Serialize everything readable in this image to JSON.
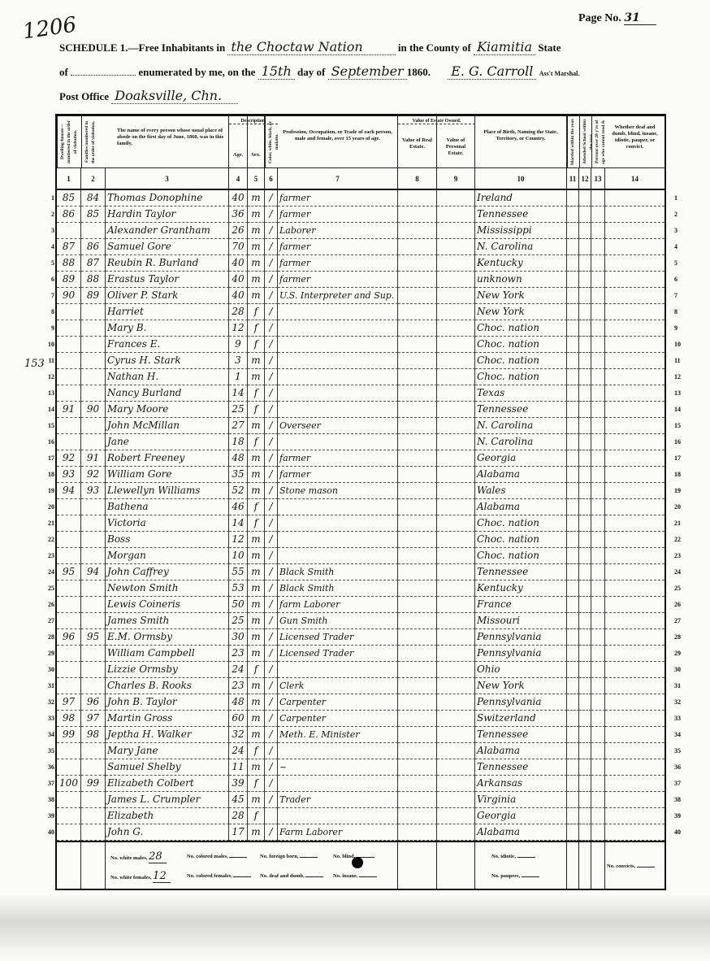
{
  "stamp": "1206",
  "page": {
    "label": "Page No.",
    "value": "31"
  },
  "header": {
    "schedule": "SCHEDULE 1.—Free Inhabitants in",
    "place": "the Choctaw Nation",
    "county_label": "in the County of",
    "county": "Kiamitia",
    "state_label": "State",
    "of_label": "of",
    "enumerated_label": "enumerated by me, on the",
    "day": "15th",
    "day_of_label": "day of",
    "month": "September",
    "year": "1860.",
    "marshal": "E. G. Carroll",
    "marshal_label": "Ass't Marshal.",
    "post_office_label": "Post Office",
    "post_office": "Doaksville, Chn."
  },
  "margin_note": "153",
  "columns": {
    "c1": "Dwelling-houses—numbered in the order of visitation.",
    "c2": "Families numbered in the order of visitation.",
    "c3": "The name of every person whose usual place of abode on the first day of June, 1860, was in this family.",
    "description": "Description.",
    "c4": "Age.",
    "c5": "Sex.",
    "c6": "Color, white, black, or mulatto.",
    "c7": "Profession, Occupation, or Trade of each person, male and female, over 15 years of age.",
    "estate": "Value of Estate Owned.",
    "c8": "Value of Real Estate.",
    "c9": "Value of Personal Estate.",
    "c10": "Place of Birth, Naming the State, Territory, or Country.",
    "c11": "Married within the year.",
    "c12": "Attended School within the year.",
    "c13": "Persons over 20 y'rs of age who cannot read & write.",
    "c14": "Whether deaf and dumb, blind, insane, idiotic, pauper, or convict.",
    "numbers": [
      "1",
      "2",
      "3",
      "4",
      "5",
      "6",
      "7",
      "8",
      "9",
      "10",
      "11",
      "12",
      "13",
      "14"
    ]
  },
  "rows": [
    {
      "n": "1",
      "dw": "85",
      "fam": "84",
      "name": "Thomas Donophine",
      "age": "40",
      "sex": "m",
      "color": "/",
      "occ": "farmer",
      "birth": "Ireland"
    },
    {
      "n": "2",
      "dw": "86",
      "fam": "85",
      "name": "Hardin Taylor",
      "age": "36",
      "sex": "m",
      "color": "/",
      "occ": "farmer",
      "birth": "Tennessee"
    },
    {
      "n": "3",
      "dw": "",
      "fam": "",
      "name": "Alexander Grantham",
      "age": "26",
      "sex": "m",
      "color": "/",
      "occ": "Laborer",
      "birth": "Mississippi"
    },
    {
      "n": "4",
      "dw": "87",
      "fam": "86",
      "name": "Samuel Gore",
      "age": "70",
      "sex": "m",
      "color": "/",
      "occ": "farmer",
      "birth": "N. Carolina"
    },
    {
      "n": "5",
      "dw": "88",
      "fam": "87",
      "name": "Reubin R. Burland",
      "age": "40",
      "sex": "m",
      "color": "/",
      "occ": "farmer",
      "birth": "Kentucky"
    },
    {
      "n": "6",
      "dw": "89",
      "fam": "88",
      "name": "Erastus Taylor",
      "age": "40",
      "sex": "m",
      "color": "/",
      "occ": "farmer",
      "birth": "unknown"
    },
    {
      "n": "7",
      "dw": "90",
      "fam": "89",
      "name": "Oliver P. Stark",
      "age": "40",
      "sex": "m",
      "color": "/",
      "occ": "U.S. Interpreter and Sup. Merchant",
      "birth": "New York"
    },
    {
      "n": "8",
      "dw": "",
      "fam": "",
      "name": "Harriet",
      "age": "28",
      "sex": "f",
      "color": "/",
      "occ": "",
      "birth": "New York"
    },
    {
      "n": "9",
      "dw": "",
      "fam": "",
      "name": "Mary B.",
      "age": "12",
      "sex": "f",
      "color": "/",
      "occ": "",
      "birth": "Choc. nation"
    },
    {
      "n": "10",
      "dw": "",
      "fam": "",
      "name": "Frances E.",
      "age": "9",
      "sex": "f",
      "color": "/",
      "occ": "",
      "birth": "Choc. nation"
    },
    {
      "n": "11",
      "dw": "",
      "fam": "",
      "name": "Cyrus H. Stark",
      "age": "3",
      "sex": "m",
      "color": "/",
      "occ": "",
      "birth": "Choc. nation"
    },
    {
      "n": "12",
      "dw": "",
      "fam": "",
      "name": "Nathan H.",
      "age": "1",
      "sex": "m",
      "color": "/",
      "occ": "",
      "birth": "Choc. nation"
    },
    {
      "n": "13",
      "dw": "",
      "fam": "",
      "name": "Nancy Burland",
      "age": "14",
      "sex": "f",
      "color": "/",
      "occ": "",
      "birth": "Texas"
    },
    {
      "n": "14",
      "dw": "91",
      "fam": "90",
      "name": "Mary Moore",
      "age": "25",
      "sex": "f",
      "color": "/",
      "occ": "",
      "birth": "Tennessee"
    },
    {
      "n": "15",
      "dw": "",
      "fam": "",
      "name": "John McMillan",
      "age": "27",
      "sex": "m",
      "color": "/",
      "occ": "Overseer",
      "birth": "N. Carolina"
    },
    {
      "n": "16",
      "dw": "",
      "fam": "",
      "name": "Jane",
      "age": "18",
      "sex": "f",
      "color": "/",
      "occ": "",
      "birth": "N. Carolina"
    },
    {
      "n": "17",
      "dw": "92",
      "fam": "91",
      "name": "Robert Freeney",
      "age": "48",
      "sex": "m",
      "color": "/",
      "occ": "farmer",
      "birth": "Georgia"
    },
    {
      "n": "18",
      "dw": "93",
      "fam": "92",
      "name": "William Gore",
      "age": "35",
      "sex": "m",
      "color": "/",
      "occ": "farmer",
      "birth": "Alabama"
    },
    {
      "n": "19",
      "dw": "94",
      "fam": "93",
      "name": "Llewellyn Williams",
      "age": "52",
      "sex": "m",
      "color": "/",
      "occ": "Stone mason",
      "birth": "Wales"
    },
    {
      "n": "20",
      "dw": "",
      "fam": "",
      "name": "Bathena",
      "age": "46",
      "sex": "f",
      "color": "/",
      "occ": "",
      "birth": "Alabama"
    },
    {
      "n": "21",
      "dw": "",
      "fam": "",
      "name": "Victoria",
      "age": "14",
      "sex": "f",
      "color": "/",
      "occ": "",
      "birth": "Choc. nation"
    },
    {
      "n": "22",
      "dw": "",
      "fam": "",
      "name": "Boss",
      "age": "12",
      "sex": "m",
      "color": "/",
      "occ": "",
      "birth": "Choc. nation"
    },
    {
      "n": "23",
      "dw": "",
      "fam": "",
      "name": "Morgan",
      "age": "10",
      "sex": "m",
      "color": "/",
      "occ": "",
      "birth": "Choc. nation"
    },
    {
      "n": "24",
      "dw": "95",
      "fam": "94",
      "name": "John Caffrey",
      "age": "55",
      "sex": "m",
      "color": "/",
      "occ": "Black Smith",
      "birth": "Tennessee"
    },
    {
      "n": "25",
      "dw": "",
      "fam": "",
      "name": "Newton Smith",
      "age": "53",
      "sex": "m",
      "color": "/",
      "occ": "Black Smith",
      "birth": "Kentucky"
    },
    {
      "n": "26",
      "dw": "",
      "fam": "",
      "name": "Lewis Coineris",
      "age": "50",
      "sex": "m",
      "color": "/",
      "occ": "farm Laborer",
      "birth": "France"
    },
    {
      "n": "27",
      "dw": "",
      "fam": "",
      "name": "James Smith",
      "age": "25",
      "sex": "m",
      "color": "/",
      "occ": "Gun Smith",
      "birth": "Missouri"
    },
    {
      "n": "28",
      "dw": "96",
      "fam": "95",
      "name": "E.M. Ormsby",
      "age": "30",
      "sex": "m",
      "color": "/",
      "occ": "Licensed Trader",
      "birth": "Pennsylvania"
    },
    {
      "n": "29",
      "dw": "",
      "fam": "",
      "name": "William Campbell",
      "age": "23",
      "sex": "m",
      "color": "/",
      "occ": "Licensed Trader",
      "birth": "Pennsylvania"
    },
    {
      "n": "30",
      "dw": "",
      "fam": "",
      "name": "Lizzie Ormsby",
      "age": "24",
      "sex": "f",
      "color": "/",
      "occ": "",
      "birth": "Ohio"
    },
    {
      "n": "31",
      "dw": "",
      "fam": "",
      "name": "Charles B. Rooks",
      "age": "23",
      "sex": "m",
      "color": "/",
      "occ": "Clerk",
      "birth": "New York"
    },
    {
      "n": "32",
      "dw": "97",
      "fam": "96",
      "name": "John B. Taylor",
      "age": "48",
      "sex": "m",
      "color": "/",
      "occ": "Carpenter",
      "birth": "Pennsylvania"
    },
    {
      "n": "33",
      "dw": "98",
      "fam": "97",
      "name": "Martin Gross",
      "age": "60",
      "sex": "m",
      "color": "/",
      "occ": "Carpenter",
      "birth": "Switzerland"
    },
    {
      "n": "34",
      "dw": "99",
      "fam": "98",
      "name": "Jeptha H. Walker",
      "age": "32",
      "sex": "m",
      "color": "/",
      "occ": "Meth. E. Minister",
      "birth": "Tennessee"
    },
    {
      "n": "35",
      "dw": "",
      "fam": "",
      "name": "Mary Jane",
      "age": "24",
      "sex": "f",
      "color": "/",
      "occ": "",
      "birth": "Alabama"
    },
    {
      "n": "36",
      "dw": "",
      "fam": "",
      "name": "Samuel Shelby",
      "age": "11",
      "sex": "m",
      "color": "/",
      "occ": "~",
      "birth": "Tennessee"
    },
    {
      "n": "37",
      "dw": "100",
      "fam": "99",
      "name": "Elizabeth Colbert",
      "age": "39",
      "sex": "f",
      "color": "/",
      "occ": "",
      "birth": "Arkansas"
    },
    {
      "n": "38",
      "dw": "",
      "fam": "",
      "name": "James L. Crumpler",
      "age": "45",
      "sex": "m",
      "color": "/",
      "occ": "Trader",
      "birth": "Virginia"
    },
    {
      "n": "39",
      "dw": "",
      "fam": "",
      "name": "Elizabeth",
      "age": "28",
      "sex": "f",
      "color": "",
      "occ": "",
      "birth": "Georgia"
    },
    {
      "n": "40",
      "dw": "",
      "fam": "",
      "name": "John G.",
      "age": "17",
      "sex": "m",
      "color": "/",
      "occ": "Farm Laborer",
      "birth": "Alabama"
    }
  ],
  "footer": {
    "white_males_label": "No. white males,",
    "white_males": "28",
    "white_females_label": "No. white females,",
    "white_females": "12",
    "colored_males_label": "No. colored males,",
    "colored_females_label": "No. colored females,",
    "foreign_born_label": "No. foreign born,",
    "deaf_dumb_label": "No. deaf and dumb,",
    "blind_label": "No. blind,",
    "insane_label": "No. insane,",
    "idiotic_label": "No. idiotic,",
    "paupers_label": "No. paupers,",
    "convicts_label": "No. convicts,"
  }
}
